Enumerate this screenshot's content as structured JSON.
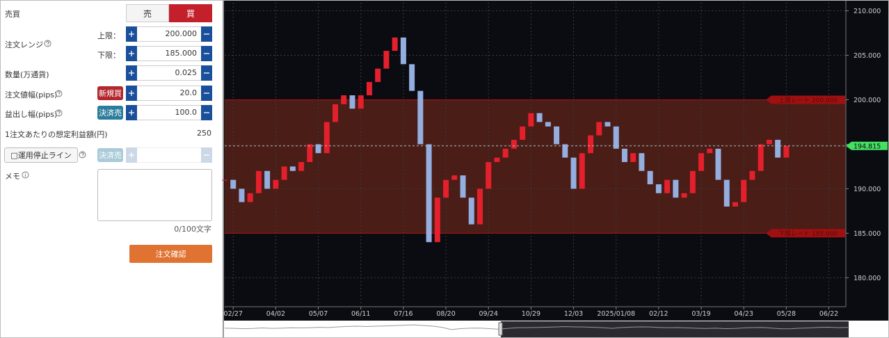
{
  "form": {
    "side": {
      "label": "売買",
      "sell": "売",
      "buy": "買"
    },
    "range": {
      "label": "注文レンジ",
      "upper_label": "上限：",
      "upper": "200.000",
      "lower_label": "下限：",
      "lower": "185.000"
    },
    "quantity": {
      "label": "数量(万通貨)",
      "value": "0.025"
    },
    "width": {
      "label": "注文値幅(pips)",
      "badge": "新規買",
      "value": "20.0"
    },
    "profit": {
      "label": "益出し幅(pips)",
      "badge": "決済売",
      "value": "100.0"
    },
    "expected": {
      "label": "1注文あたりの想定利益額(円)",
      "value": "250"
    },
    "stop": {
      "label": "□運用停止ライン",
      "badge": "決済売"
    },
    "memo": {
      "label": "メモ",
      "counter": "0/100文字"
    },
    "submit": "注文確認"
  },
  "chart_data": {
    "type": "candlestick",
    "up_color": "#e3202c",
    "down_color": "#94aee0",
    "values": [
      191,
      190,
      188.5,
      189.5,
      192,
      190,
      191,
      192.5,
      192,
      193,
      195,
      194,
      197.5,
      199.5,
      200.5,
      199,
      200.5,
      202,
      203.5,
      205.5,
      207,
      204,
      201,
      195,
      184,
      189,
      191,
      191.5,
      189,
      186,
      190,
      193,
      193.5,
      194.5,
      195.5,
      197,
      198.5,
      197.5,
      197,
      195,
      193.5,
      190,
      194,
      196,
      197.5,
      197,
      194.5,
      193,
      194,
      192,
      190.5,
      189.5,
      191,
      189,
      189.5,
      192,
      194,
      194.5,
      191,
      188,
      188.5,
      191,
      192,
      195,
      195.5,
      193.5,
      194.815
    ],
    "xlim": [
      0,
      73
    ],
    "xticks": [
      {
        "value": 1,
        "label": "02/27"
      },
      {
        "value": 6,
        "label": "04/02"
      },
      {
        "value": 11,
        "label": "05/07"
      },
      {
        "value": 16,
        "label": "06/11"
      },
      {
        "value": 21,
        "label": "07/16"
      },
      {
        "value": 26,
        "label": "08/20"
      },
      {
        "value": 31,
        "label": "09/24"
      },
      {
        "value": 36,
        "label": "10/29"
      },
      {
        "value": 41,
        "label": "12/03"
      },
      {
        "value": 46,
        "label": "2025/01/08"
      },
      {
        "value": 51,
        "label": "02/12"
      },
      {
        "value": 56,
        "label": "03/19"
      },
      {
        "value": 61,
        "label": "04/23"
      },
      {
        "value": 66,
        "label": "05/28"
      },
      {
        "value": 71,
        "label": "06/22"
      }
    ],
    "ylim": [
      176.9,
      210.9
    ],
    "yticks": [
      {
        "value": 180,
        "label": "180.000"
      },
      {
        "value": 185,
        "label": "185.000"
      },
      {
        "value": 190,
        "label": "190.000"
      },
      {
        "value": 195,
        "label": "195.000"
      },
      {
        "value": 200,
        "label": "200.000"
      },
      {
        "value": 205,
        "label": "205.000"
      },
      {
        "value": 210,
        "label": "210.000"
      }
    ],
    "grid": true,
    "upper_band": {
      "value": 200,
      "label": "上限レート 200.000"
    },
    "lower_band": {
      "value": 185,
      "label": "下限レート 185.000"
    },
    "current": {
      "value": 194.815,
      "label": "194.815"
    }
  }
}
